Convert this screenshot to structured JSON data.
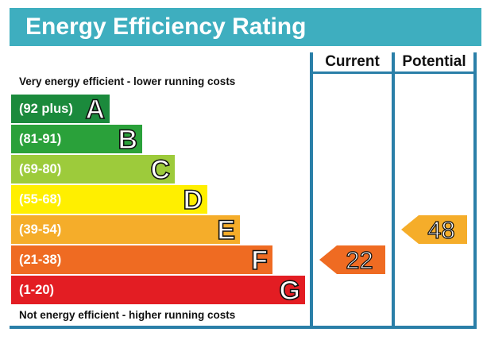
{
  "title": "Energy Efficiency Rating",
  "columns": {
    "current": "Current",
    "potential": "Potential"
  },
  "notes": {
    "top": "Very energy efficient - lower running costs",
    "bottom": "Not energy efficient - higher running costs"
  },
  "chart_data": {
    "type": "bar",
    "title": "Energy Efficiency Rating",
    "categories": [
      "A",
      "B",
      "C",
      "D",
      "E",
      "F",
      "G"
    ],
    "bands": [
      {
        "letter": "A",
        "range": "(92 plus)",
        "color": "#1b8a3c"
      },
      {
        "letter": "B",
        "range": "(81-91)",
        "color": "#2aa13a"
      },
      {
        "letter": "C",
        "range": "(69-80)",
        "color": "#9dcb3b"
      },
      {
        "letter": "D",
        "range": "(55-68)",
        "color": "#ffef00"
      },
      {
        "letter": "E",
        "range": "(39-54)",
        "color": "#f5ad2a"
      },
      {
        "letter": "F",
        "range": "(21-38)",
        "color": "#ef6b22"
      },
      {
        "letter": "G",
        "range": "(1-20)",
        "color": "#e31d23"
      }
    ],
    "series": [
      {
        "name": "Current",
        "value": 22,
        "band": "F",
        "color": "#ef6b22"
      },
      {
        "name": "Potential",
        "value": 48,
        "band": "E",
        "color": "#f5ad2a"
      }
    ],
    "legend": "none",
    "grid": false
  }
}
